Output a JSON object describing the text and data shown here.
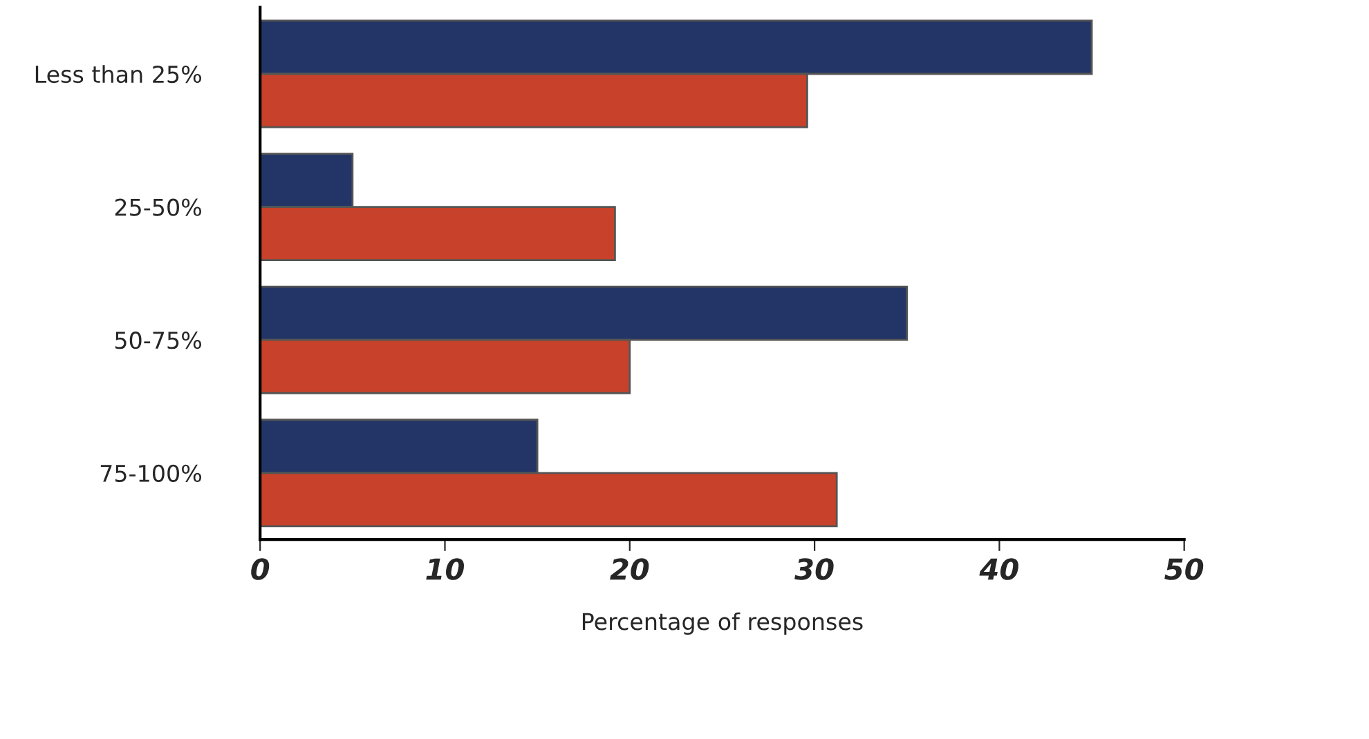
{
  "chart_data": {
    "type": "bar",
    "orientation": "horizontal",
    "xlabel": "Percentage of responses",
    "categories": [
      "Less than 25%",
      "25-50%",
      "50-75%",
      "75-100%"
    ],
    "series": [
      {
        "color": "#233566",
        "values": [
          45,
          5,
          35,
          15
        ]
      },
      {
        "color": "#c8412a",
        "values": [
          29.6,
          19.2,
          20,
          31.2
        ]
      }
    ],
    "xlim": [
      0,
      50
    ],
    "xticks": [
      0,
      10,
      20,
      30,
      40,
      50
    ],
    "grid": false,
    "legend": false
  }
}
